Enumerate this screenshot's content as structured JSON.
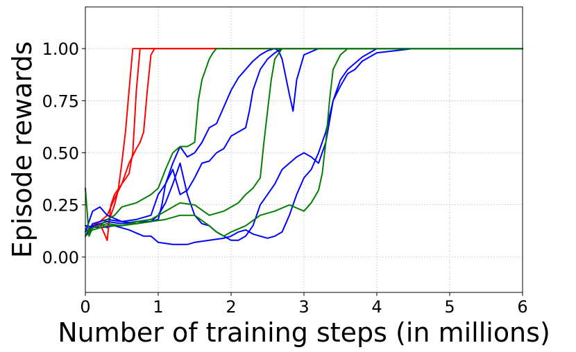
{
  "chart_data": {
    "type": "line",
    "title": "",
    "xlabel": "Number of training steps (in millions)",
    "ylabel": "Episode rewards",
    "xlim": [
      0,
      6
    ],
    "ylim": [
      -0.17,
      1.2
    ],
    "xticks": [
      0,
      1,
      2,
      3,
      4,
      5,
      6
    ],
    "xtick_labels": [
      "0",
      "1",
      "2",
      "3",
      "4",
      "5",
      "6"
    ],
    "yticks": [
      0.0,
      0.25,
      0.5,
      0.75,
      1.0
    ],
    "ytick_labels": [
      "0.00",
      "0.25",
      "0.50",
      "0.75",
      "1.00"
    ],
    "grid": true,
    "legend": "none",
    "series": [
      {
        "color": "#ff0000",
        "x": [
          0,
          0.1,
          0.2,
          0.3,
          0.35,
          0.4,
          0.45,
          0.5,
          0.55,
          0.6,
          0.65,
          0.7,
          6
        ],
        "y": [
          0.12,
          0.15,
          0.16,
          0.14,
          0.2,
          0.25,
          0.32,
          0.45,
          0.6,
          0.8,
          1.0,
          1.0,
          1.0
        ]
      },
      {
        "color": "#ff0000",
        "x": [
          0,
          0.1,
          0.2,
          0.3,
          0.35,
          0.4,
          0.5,
          0.6,
          0.65,
          0.7,
          0.75,
          6
        ],
        "y": [
          0.1,
          0.14,
          0.16,
          0.08,
          0.25,
          0.3,
          0.35,
          0.4,
          0.5,
          0.8,
          1.0,
          1.0
        ]
      },
      {
        "color": "#ff0000",
        "x": [
          0,
          0.1,
          0.2,
          0.3,
          0.4,
          0.5,
          0.6,
          0.7,
          0.75,
          0.8,
          0.85,
          0.9,
          0.95,
          6
        ],
        "y": [
          0.12,
          0.15,
          0.17,
          0.2,
          0.28,
          0.35,
          0.45,
          0.52,
          0.55,
          0.6,
          0.8,
          0.97,
          1.0,
          1.0
        ]
      },
      {
        "color": "#0000ff",
        "x": [
          0,
          0.1,
          0.2,
          0.3,
          0.5,
          0.7,
          0.9,
          1.0,
          1.1,
          1.2,
          1.3,
          1.4,
          1.5,
          1.6,
          1.7,
          1.8,
          1.9,
          2.0,
          2.1,
          2.2,
          2.3,
          2.4,
          2.5,
          2.6,
          2.65,
          2.7,
          2.8,
          2.85,
          2.9,
          3.0,
          3.2,
          6
        ],
        "y": [
          0.12,
          0.22,
          0.24,
          0.2,
          0.17,
          0.18,
          0.2,
          0.3,
          0.35,
          0.45,
          0.53,
          0.48,
          0.5,
          0.55,
          0.62,
          0.64,
          0.72,
          0.8,
          0.86,
          0.9,
          0.94,
          0.97,
          0.99,
          1.0,
          0.99,
          0.95,
          0.78,
          0.7,
          0.85,
          0.97,
          1.0,
          1.0
        ]
      },
      {
        "color": "#0000ff",
        "x": [
          0,
          0.1,
          0.3,
          0.5,
          0.7,
          0.9,
          1.0,
          1.05,
          1.1,
          1.2,
          1.3,
          1.4,
          1.5,
          1.6,
          1.7,
          1.8,
          1.9,
          2.0,
          2.1,
          2.2,
          2.25,
          2.3,
          2.4,
          2.5,
          2.6,
          2.7,
          2.8,
          6
        ],
        "y": [
          0.1,
          0.16,
          0.18,
          0.17,
          0.16,
          0.17,
          0.18,
          0.25,
          0.35,
          0.42,
          0.3,
          0.32,
          0.38,
          0.45,
          0.46,
          0.5,
          0.52,
          0.58,
          0.6,
          0.62,
          0.7,
          0.8,
          0.9,
          0.95,
          0.98,
          1.0,
          1.0,
          1.0
        ]
      },
      {
        "color": "#0000ff",
        "x": [
          0,
          0.1,
          0.3,
          0.5,
          0.7,
          0.9,
          1.0,
          1.1,
          1.2,
          1.3,
          1.4,
          1.5,
          1.6,
          1.7,
          1.8,
          1.9,
          2.0,
          2.1,
          2.2,
          2.3,
          2.4,
          2.5,
          2.6,
          2.7,
          2.8,
          2.9,
          3.0,
          3.1,
          3.2,
          3.3,
          3.4,
          3.5,
          3.6,
          3.7,
          3.8,
          3.9,
          4.0,
          4.5,
          6
        ],
        "y": [
          0.1,
          0.15,
          0.17,
          0.16,
          0.17,
          0.17,
          0.2,
          0.26,
          0.35,
          0.45,
          0.3,
          0.2,
          0.16,
          0.15,
          0.12,
          0.1,
          0.08,
          0.08,
          0.1,
          0.15,
          0.25,
          0.3,
          0.35,
          0.42,
          0.45,
          0.48,
          0.5,
          0.48,
          0.45,
          0.55,
          0.75,
          0.85,
          0.9,
          0.93,
          0.96,
          0.98,
          1.0,
          1.0,
          1.0
        ]
      },
      {
        "color": "#0000ff",
        "x": [
          0,
          0.2,
          0.4,
          0.6,
          0.8,
          0.9,
          1.0,
          1.2,
          1.4,
          1.5,
          1.7,
          1.9,
          2.0,
          2.1,
          2.2,
          2.3,
          2.4,
          2.5,
          2.6,
          2.7,
          2.8,
          2.9,
          3.0,
          3.1,
          3.2,
          3.3,
          3.4,
          3.5,
          3.6,
          3.7,
          3.8,
          3.9,
          4.0,
          4.5,
          6
        ],
        "y": [
          0.15,
          0.14,
          0.15,
          0.13,
          0.1,
          0.1,
          0.07,
          0.06,
          0.06,
          0.07,
          0.08,
          0.09,
          0.1,
          0.12,
          0.13,
          0.11,
          0.1,
          0.09,
          0.1,
          0.12,
          0.2,
          0.3,
          0.38,
          0.42,
          0.5,
          0.6,
          0.75,
          0.82,
          0.88,
          0.9,
          0.94,
          0.96,
          0.98,
          1.0,
          1.0
        ]
      },
      {
        "color": "#007f00",
        "x": [
          0,
          0.05,
          0.1,
          0.2,
          0.3,
          0.4,
          0.5,
          0.7,
          0.8,
          0.9,
          1.0,
          1.1,
          1.2,
          1.3,
          1.4,
          1.5,
          1.55,
          1.6,
          1.65,
          1.7,
          1.75,
          1.8,
          1.9,
          2.0,
          6
        ],
        "y": [
          0.33,
          0.1,
          0.14,
          0.15,
          0.18,
          0.2,
          0.24,
          0.26,
          0.28,
          0.3,
          0.33,
          0.42,
          0.5,
          0.53,
          0.53,
          0.55,
          0.75,
          0.85,
          0.9,
          0.95,
          0.98,
          1.0,
          1.0,
          1.0,
          1.0
        ]
      },
      {
        "color": "#007f00",
        "x": [
          0,
          0.1,
          0.3,
          0.5,
          0.7,
          0.9,
          1.1,
          1.3,
          1.5,
          1.7,
          1.9,
          2.0,
          2.1,
          2.2,
          2.3,
          2.4,
          2.45,
          2.5,
          2.55,
          2.6,
          2.7,
          2.8,
          6
        ],
        "y": [
          0.12,
          0.14,
          0.16,
          0.15,
          0.17,
          0.18,
          0.22,
          0.26,
          0.25,
          0.2,
          0.22,
          0.24,
          0.26,
          0.3,
          0.33,
          0.38,
          0.55,
          0.7,
          0.85,
          0.95,
          1.0,
          1.0,
          1.0
        ]
      },
      {
        "color": "#007f00",
        "x": [
          0,
          0.1,
          0.3,
          0.5,
          0.7,
          0.9,
          1.1,
          1.3,
          1.5,
          1.7,
          1.8,
          1.9,
          2.0,
          2.2,
          2.4,
          2.6,
          2.8,
          3.0,
          3.1,
          3.2,
          3.25,
          3.3,
          3.35,
          3.4,
          3.5,
          3.6,
          3.7,
          6
        ],
        "y": [
          0.1,
          0.13,
          0.15,
          0.15,
          0.16,
          0.17,
          0.18,
          0.2,
          0.2,
          0.15,
          0.12,
          0.1,
          0.12,
          0.15,
          0.2,
          0.22,
          0.25,
          0.22,
          0.26,
          0.32,
          0.4,
          0.55,
          0.75,
          0.9,
          0.97,
          1.0,
          1.0,
          1.0
        ]
      }
    ]
  }
}
